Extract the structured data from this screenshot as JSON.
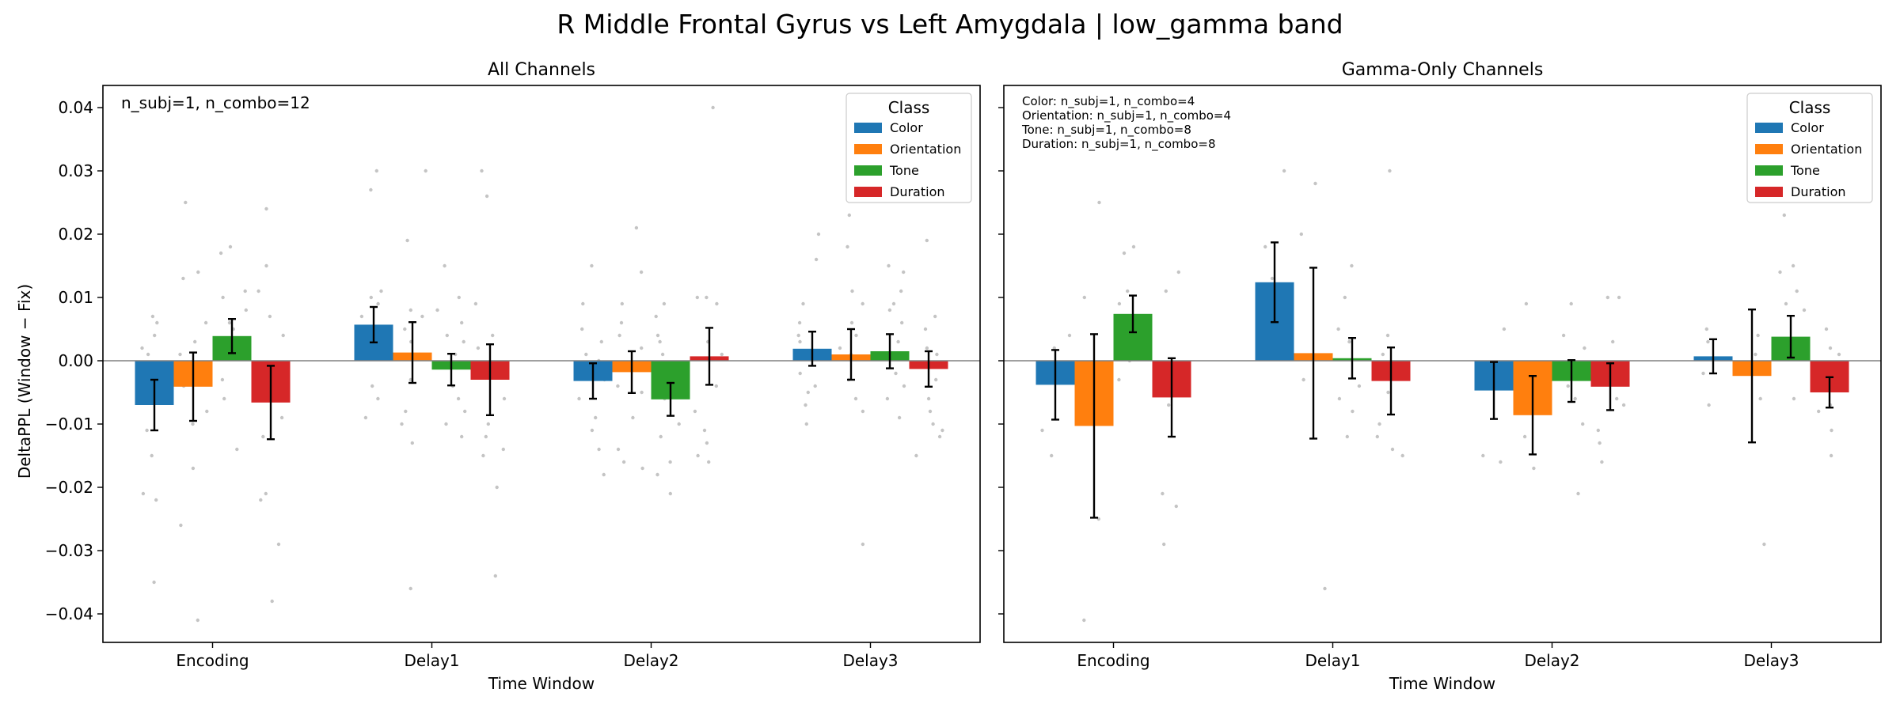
{
  "figure_title": "R Middle Frontal Gyrus vs Left Amygdala  |  low_gamma band",
  "y_axis_label": "DeltaPPL (Window − Fix)",
  "colors": {
    "Color": "#1f77b4",
    "Orientation": "#ff7f0e",
    "Tone": "#2ca02c",
    "Duration": "#d62728",
    "points": "#b0b0b0",
    "zero_line": "#808080"
  },
  "chart_data": [
    {
      "type": "bar",
      "title": "All Channels",
      "xlabel": "Time Window",
      "ylabel": "DeltaPPL (Window − Fix)",
      "ylim": [
        -0.0445,
        0.0435
      ],
      "yticks": [
        -0.04,
        -0.03,
        -0.02,
        -0.01,
        0.0,
        0.01,
        0.02,
        0.03,
        0.04
      ],
      "ytick_labels": [
        "−0.04",
        "−0.03",
        "−0.02",
        "−0.01",
        "0.00",
        "0.01",
        "0.02",
        "0.03",
        "0.04"
      ],
      "categories": [
        "Encoding",
        "Delay1",
        "Delay2",
        "Delay3"
      ],
      "annotation": [
        "n_subj=1, n_combo=12"
      ],
      "legend": {
        "title": "Class",
        "placement": "top-right"
      },
      "grid": false,
      "series": [
        {
          "name": "Color",
          "values": [
            -0.007,
            0.0057,
            -0.0032,
            0.0019
          ],
          "errors": [
            0.004,
            0.0028,
            0.0028,
            0.0027
          ]
        },
        {
          "name": "Orientation",
          "values": [
            -0.0041,
            0.0013,
            -0.0018,
            0.001
          ],
          "errors": [
            0.0054,
            0.0048,
            0.0033,
            0.004
          ]
        },
        {
          "name": "Tone",
          "values": [
            0.0039,
            -0.0014,
            -0.0061,
            0.0015
          ],
          "errors": [
            0.0027,
            0.0025,
            0.0026,
            0.0027
          ]
        },
        {
          "name": "Duration",
          "values": [
            -0.0066,
            -0.003,
            0.0007,
            -0.0013
          ],
          "errors": [
            0.0058,
            0.0056,
            0.0045,
            0.0028
          ]
        }
      ]
    },
    {
      "type": "bar",
      "title": "Gamma-Only Channels",
      "xlabel": "Time Window",
      "ylabel": "",
      "ylim": [
        -0.0445,
        0.0435
      ],
      "yticks": [
        -0.04,
        -0.03,
        -0.02,
        -0.01,
        0.0,
        0.01,
        0.02,
        0.03,
        0.04
      ],
      "ytick_labels": [],
      "categories": [
        "Encoding",
        "Delay1",
        "Delay2",
        "Delay3"
      ],
      "annotation": [
        "Color: n_subj=1, n_combo=4",
        "Orientation: n_subj=1, n_combo=4",
        "Tone: n_subj=1, n_combo=8",
        "Duration: n_subj=1, n_combo=8"
      ],
      "legend": {
        "title": "Class",
        "placement": "top-right"
      },
      "grid": false,
      "series": [
        {
          "name": "Color",
          "values": [
            -0.0038,
            0.0124,
            -0.0047,
            0.0007
          ],
          "errors": [
            0.0055,
            0.0063,
            0.0045,
            0.0027
          ]
        },
        {
          "name": "Orientation",
          "values": [
            -0.0103,
            0.0012,
            -0.0086,
            -0.0024
          ],
          "errors": [
            0.0145,
            0.0135,
            0.0062,
            0.0105
          ]
        },
        {
          "name": "Tone",
          "values": [
            0.0074,
            0.0004,
            -0.0032,
            0.0038
          ],
          "errors": [
            0.0029,
            0.0032,
            0.0033,
            0.0033
          ]
        },
        {
          "name": "Duration",
          "values": [
            -0.0058,
            -0.0032,
            -0.0041,
            -0.005
          ],
          "errors": [
            0.0062,
            0.0053,
            0.0037,
            0.0024
          ]
        }
      ],
      "points": [
        [
          [
            -0.011,
            -0.015,
            0.002,
            0.004
          ],
          [
            -0.025,
            -0.041,
            0.025,
            0.01
          ],
          [
            0.017,
            0.018,
            0.011,
            -0.003,
            0.003,
            0.006,
            0.009,
            0.0
          ],
          [
            -0.021,
            -0.023,
            -0.029,
            0.014,
            0.011,
            -0.005,
            -0.003,
            -0.007
          ]
        ],
        [
          [
            0.03,
            0.018,
            0.005,
            0.013
          ],
          [
            -0.036,
            0.028,
            0.02,
            -0.003
          ],
          [
            0.015,
            0.01,
            0.003,
            -0.008,
            -0.012,
            0.005,
            -0.006,
            -0.004
          ],
          [
            0.03,
            -0.014,
            -0.015,
            -0.01,
            -0.005,
            0.001,
            0.004,
            -0.012
          ]
        ],
        [
          [
            -0.015,
            -0.016,
            0.005,
            -0.003
          ],
          [
            -0.017,
            0.009,
            -0.008,
            -0.012
          ],
          [
            -0.021,
            0.009,
            0.004,
            -0.006,
            -0.01,
            -0.002,
            -0.004,
            0.002
          ],
          [
            0.01,
            0.01,
            -0.011,
            -0.016,
            -0.013,
            -0.006,
            0.003,
            -0.007
          ]
        ],
        [
          [
            0.005,
            -0.007,
            0.003,
            -0.002
          ],
          [
            -0.029,
            0.001,
            -0.006,
            0.004
          ],
          [
            0.023,
            0.015,
            0.014,
            0.011,
            0.008,
            -0.006,
            0.002,
            0.009
          ],
          [
            -0.015,
            -0.011,
            -0.008,
            0.005,
            0.001,
            -0.004,
            -0.007,
            0.002
          ]
        ]
      ]
    }
  ],
  "all_points": [
    [
      [
        -0.035,
        -0.022,
        -0.021,
        -0.011,
        0.007,
        0.004,
        0.002,
        -0.006,
        0.006,
        -0.015,
        0.001,
        -0.003
      ],
      [
        -0.041,
        -0.026,
        -0.017,
        0.025,
        0.014,
        0.013,
        0.003,
        -0.01,
        -0.004,
        0.001,
        0.006,
        -0.008
      ],
      [
        0.017,
        0.018,
        0.011,
        0.01,
        0.006,
        0.005,
        -0.014,
        0.003,
        -0.003,
        0.008,
        0.001,
        -0.006
      ],
      [
        -0.038,
        -0.021,
        -0.022,
        -0.029,
        0.024,
        0.015,
        0.011,
        0.004,
        -0.005,
        -0.009,
        0.007,
        -0.012
      ]
    ],
    [
      [
        0.03,
        0.027,
        0.011,
        0.009,
        0.004,
        -0.009,
        -0.004,
        0.007,
        0.005,
        0.01,
        0.003,
        -0.006
      ],
      [
        0.03,
        0.019,
        -0.036,
        -0.013,
        0.008,
        0.007,
        0.003,
        -0.003,
        -0.008,
        0.005,
        0.001,
        -0.01
      ],
      [
        0.015,
        0.01,
        -0.012,
        -0.008,
        0.003,
        0.006,
        -0.006,
        0.001,
        -0.004,
        0.008,
        -0.01,
        0.004
      ],
      [
        0.03,
        0.026,
        -0.034,
        -0.02,
        -0.015,
        -0.014,
        0.009,
        -0.012,
        0.004,
        -0.01,
        0.002,
        -0.006
      ]
    ],
    [
      [
        0.015,
        -0.018,
        -0.009,
        -0.011,
        0.005,
        0.003,
        -0.003,
        0.001,
        -0.006,
        0.009,
        -0.014,
        0.0
      ],
      [
        0.021,
        -0.017,
        -0.016,
        0.014,
        0.009,
        -0.014,
        0.004,
        -0.004,
        -0.009,
        0.002,
        -0.005,
        0.006
      ],
      [
        -0.021,
        -0.018,
        0.009,
        -0.016,
        0.004,
        -0.002,
        0.001,
        -0.006,
        -0.01,
        0.003,
        -0.012,
        0.007
      ],
      [
        0.04,
        0.01,
        0.01,
        -0.015,
        -0.016,
        -0.013,
        -0.008,
        0.009,
        0.003,
        -0.004,
        -0.011,
        0.001
      ]
    ],
    [
      [
        0.02,
        0.016,
        -0.007,
        -0.005,
        0.003,
        0.001,
        -0.002,
        0.006,
        0.009,
        -0.01,
        0.004,
        -0.004
      ],
      [
        0.023,
        0.018,
        0.011,
        -0.029,
        0.006,
        -0.003,
        0.002,
        0.009,
        -0.006,
        0.001,
        -0.008,
        0.004
      ],
      [
        0.015,
        0.014,
        0.011,
        -0.006,
        0.008,
        -0.002,
        0.003,
        0.006,
        0.001,
        -0.004,
        0.009,
        -0.009
      ],
      [
        0.019,
        -0.015,
        -0.011,
        -0.008,
        -0.01,
        0.005,
        -0.003,
        0.001,
        -0.006,
        0.002,
        -0.012,
        0.007
      ]
    ]
  ]
}
